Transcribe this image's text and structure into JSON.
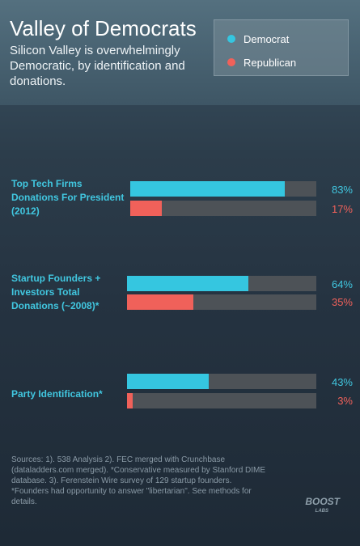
{
  "header": {
    "title": "Valley of Democrats",
    "subtitle": "Silicon Valley is overwhelmingly Democratic, by identification and donations."
  },
  "legend": {
    "items": [
      {
        "label": "Democrat",
        "color": "#35c6e0"
      },
      {
        "label": "Republican",
        "color": "#f0615a"
      }
    ]
  },
  "chart_data": {
    "type": "bar",
    "orientation": "horizontal",
    "title": "Valley of Democrats",
    "subtitle": "Silicon Valley is overwhelmingly Democratic, by identification and donations.",
    "categories": [
      "Top Tech Firms Donations For President (2012)",
      "Startup Founders + Investors Total Donations (~2008)*",
      "Party Identification*"
    ],
    "series": [
      {
        "name": "Democrat",
        "color": "#35c6e0",
        "values": [
          83,
          64,
          43
        ],
        "labels": [
          "83%",
          "64%",
          "43%"
        ]
      },
      {
        "name": "Republican",
        "color": "#f0615a",
        "values": [
          17,
          35,
          3
        ],
        "labels": [
          "17%",
          "35%",
          "3%"
        ]
      }
    ],
    "xlim": [
      0,
      100
    ],
    "unit": "%",
    "legend": "top-right",
    "grid": false
  },
  "rows": [
    {
      "label": "Top Tech Firms Donations For President (2012)",
      "dem": "83%",
      "rep": "17%"
    },
    {
      "label": "Startup Founders + Investors Total Donations (~2008)*",
      "dem": "64%",
      "rep": "35%"
    },
    {
      "label": "Party Identification*",
      "dem": "43%",
      "rep": "3%"
    }
  ],
  "footer": {
    "sources": "Sources: 1). 538 Analysis 2). FEC merged with Crunchbase (dataladders.com merged). *Conservative measured by Stanford DIME database. 3). Ferenstein Wire survey of 129 startup founders. *Founders had opportunity to answer \"libertarian\". See methods for details.",
    "logo_top": "BOOST",
    "logo_bottom": "LABS"
  }
}
